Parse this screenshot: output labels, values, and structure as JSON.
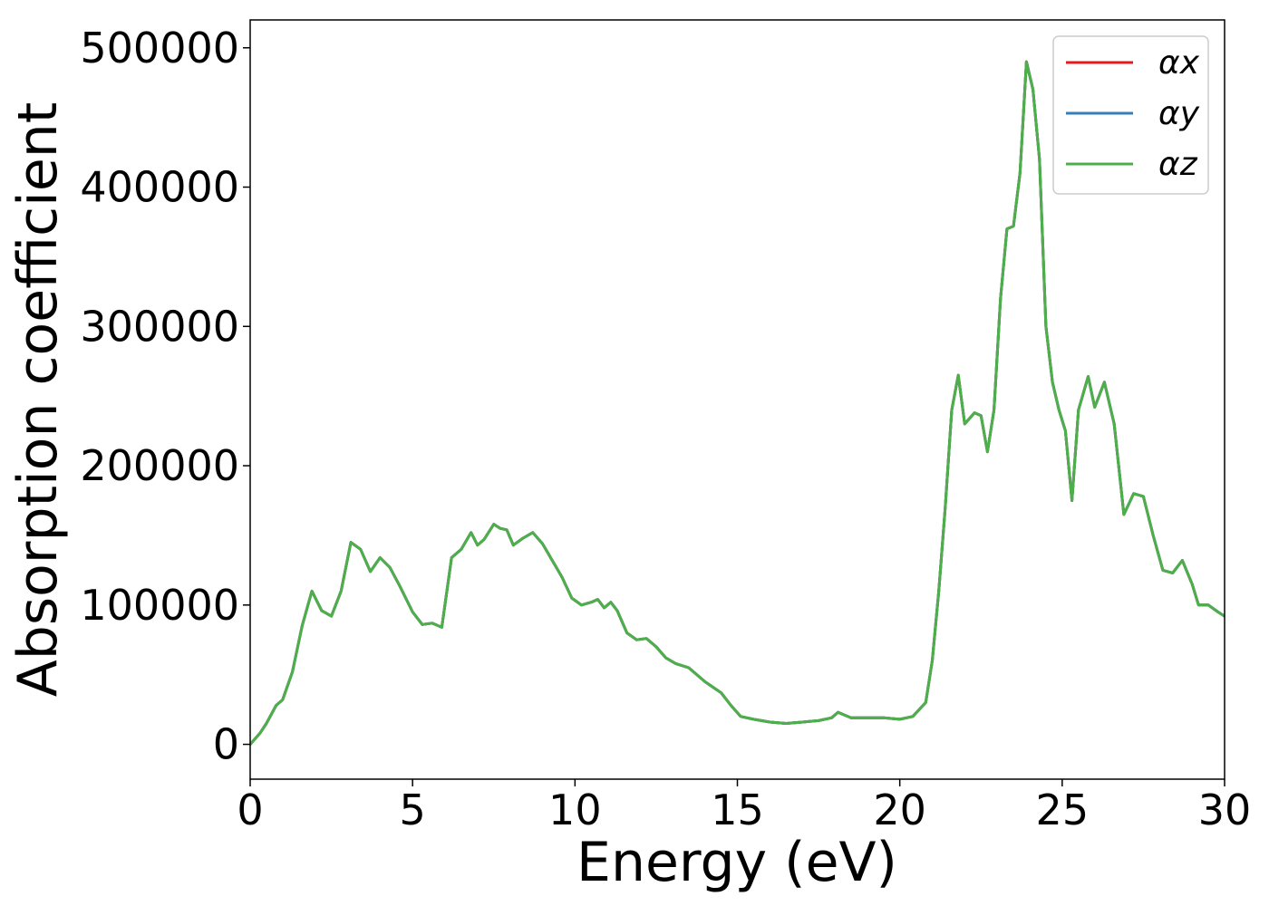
{
  "chart_data": {
    "type": "line",
    "xlabel": "Energy (eV)",
    "ylabel": "Absorption coefficient",
    "xlim": [
      0,
      30
    ],
    "ylim": [
      -25000,
      520000
    ],
    "xticks": [
      0,
      5,
      10,
      15,
      20,
      25,
      30
    ],
    "yticks": [
      0,
      100000,
      200000,
      300000,
      400000,
      500000
    ],
    "grid": false,
    "legend_position": "upper-right",
    "x": [
      0.0,
      0.3,
      0.5,
      0.8,
      1.0,
      1.3,
      1.6,
      1.9,
      2.2,
      2.5,
      2.8,
      3.1,
      3.4,
      3.7,
      4.0,
      4.3,
      4.6,
      5.0,
      5.3,
      5.6,
      5.9,
      6.2,
      6.5,
      6.8,
      7.0,
      7.2,
      7.5,
      7.7,
      7.9,
      8.1,
      8.4,
      8.7,
      9.0,
      9.3,
      9.6,
      9.9,
      10.2,
      10.5,
      10.7,
      10.9,
      11.1,
      11.3,
      11.6,
      11.9,
      12.2,
      12.5,
      12.8,
      13.1,
      13.5,
      14.0,
      14.5,
      14.8,
      15.1,
      15.5,
      16.0,
      16.5,
      17.0,
      17.5,
      17.9,
      18.1,
      18.5,
      19.0,
      19.5,
      20.0,
      20.4,
      20.8,
      21.0,
      21.2,
      21.4,
      21.6,
      21.8,
      22.0,
      22.3,
      22.5,
      22.7,
      22.9,
      23.1,
      23.3,
      23.5,
      23.7,
      23.9,
      24.1,
      24.3,
      24.5,
      24.7,
      24.9,
      25.1,
      25.3,
      25.5,
      25.8,
      26.0,
      26.3,
      26.6,
      26.9,
      27.2,
      27.5,
      27.8,
      28.1,
      28.4,
      28.7,
      29.0,
      29.2,
      29.5,
      29.8,
      30.0
    ],
    "series": [
      {
        "name": "αx",
        "color": "#e41a1c",
        "values": [
          0,
          8000,
          15000,
          28000,
          32000,
          52000,
          85000,
          110000,
          96000,
          92000,
          110000,
          145000,
          140000,
          124000,
          134000,
          127000,
          114000,
          95000,
          86000,
          87000,
          84000,
          134000,
          140000,
          152000,
          143000,
          147000,
          158000,
          155000,
          154000,
          143000,
          148000,
          152000,
          144000,
          132000,
          120000,
          105000,
          100000,
          102000,
          104000,
          98000,
          102000,
          96000,
          80000,
          75000,
          76000,
          70000,
          62000,
          58000,
          55000,
          45000,
          37000,
          28000,
          20000,
          18000,
          16000,
          15000,
          16000,
          17000,
          19000,
          23000,
          19000,
          19000,
          19000,
          18000,
          20000,
          30000,
          60000,
          110000,
          170000,
          240000,
          265000,
          230000,
          238000,
          236000,
          210000,
          240000,
          320000,
          370000,
          372000,
          410000,
          490000,
          470000,
          420000,
          300000,
          260000,
          240000,
          225000,
          175000,
          240000,
          264000,
          242000,
          260000,
          230000,
          165000,
          180000,
          178000,
          150000,
          125000,
          123000,
          132000,
          115000,
          100000,
          100000,
          95000,
          92000
        ]
      },
      {
        "name": "αy",
        "color": "#377eb8",
        "values": [
          0,
          8000,
          15000,
          28000,
          32000,
          52000,
          85000,
          110000,
          96000,
          92000,
          110000,
          145000,
          140000,
          124000,
          134000,
          127000,
          114000,
          95000,
          86000,
          87000,
          84000,
          134000,
          140000,
          152000,
          143000,
          147000,
          158000,
          155000,
          154000,
          143000,
          148000,
          152000,
          144000,
          132000,
          120000,
          105000,
          100000,
          102000,
          104000,
          98000,
          102000,
          96000,
          80000,
          75000,
          76000,
          70000,
          62000,
          58000,
          55000,
          45000,
          37000,
          28000,
          20000,
          18000,
          16000,
          15000,
          16000,
          17000,
          19000,
          23000,
          19000,
          19000,
          19000,
          18000,
          20000,
          30000,
          60000,
          110000,
          170000,
          240000,
          265000,
          230000,
          238000,
          236000,
          210000,
          240000,
          320000,
          370000,
          372000,
          410000,
          490000,
          470000,
          420000,
          300000,
          260000,
          240000,
          225000,
          175000,
          240000,
          264000,
          242000,
          260000,
          230000,
          165000,
          180000,
          178000,
          150000,
          125000,
          123000,
          132000,
          115000,
          100000,
          100000,
          95000,
          92000
        ]
      },
      {
        "name": "αz",
        "color": "#4daf4a",
        "values": [
          0,
          8000,
          15000,
          28000,
          32000,
          52000,
          85000,
          110000,
          96000,
          92000,
          110000,
          145000,
          140000,
          124000,
          134000,
          127000,
          114000,
          95000,
          86000,
          87000,
          84000,
          134000,
          140000,
          152000,
          143000,
          147000,
          158000,
          155000,
          154000,
          143000,
          148000,
          152000,
          144000,
          132000,
          120000,
          105000,
          100000,
          102000,
          104000,
          98000,
          102000,
          96000,
          80000,
          75000,
          76000,
          70000,
          62000,
          58000,
          55000,
          45000,
          37000,
          28000,
          20000,
          18000,
          16000,
          15000,
          16000,
          17000,
          19000,
          23000,
          19000,
          19000,
          19000,
          18000,
          20000,
          30000,
          60000,
          110000,
          170000,
          240000,
          265000,
          230000,
          238000,
          236000,
          210000,
          240000,
          320000,
          370000,
          372000,
          410000,
          490000,
          470000,
          420000,
          300000,
          260000,
          240000,
          225000,
          175000,
          240000,
          264000,
          242000,
          260000,
          230000,
          165000,
          180000,
          178000,
          150000,
          125000,
          123000,
          132000,
          115000,
          100000,
          100000,
          95000,
          92000
        ]
      }
    ]
  }
}
